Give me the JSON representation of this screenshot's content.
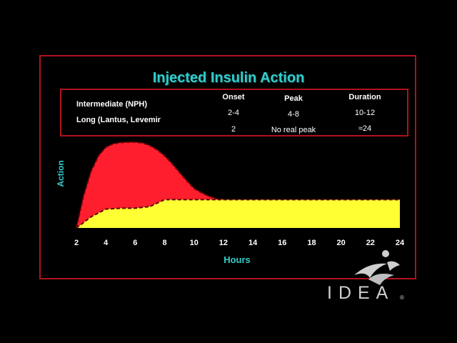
{
  "slide": {
    "title": "Injected Insulin Action"
  },
  "table": {
    "headers": {
      "onset": "Onset",
      "peak": "Peak",
      "duration": "Duration"
    },
    "rows": [
      {
        "name": "Intermediate (NPH)",
        "onset": "2-4",
        "peak": "4-8",
        "duration": "10-12"
      },
      {
        "name": "Long (Lantus, Levemir",
        "onset": "2",
        "peak": "No real peak",
        "duration": "≈24"
      }
    ]
  },
  "logo": {
    "text": "IDEA",
    "mark": "®"
  },
  "colors": {
    "frame": "#b0121b",
    "title": "#33cccc",
    "nph_fill": "#ff1e2d",
    "long_fill": "#ffff33",
    "axis_label": "#33cccc"
  },
  "chart_data": {
    "type": "area",
    "xlabel": "Hours",
    "ylabel": "Action",
    "xlim": [
      2,
      24
    ],
    "ylim": [
      0,
      1
    ],
    "x_ticks": [
      "2",
      "4",
      "6",
      "8",
      "10",
      "12",
      "14",
      "16",
      "18",
      "20",
      "22",
      "24"
    ],
    "grid": false,
    "series": [
      {
        "name": "Intermediate (NPH)",
        "color": "#ff1e2d",
        "x": [
          2,
          2.5,
          3,
          3.5,
          4,
          4.5,
          5,
          5.5,
          6,
          6.5,
          7,
          7.5,
          8,
          8.5,
          9,
          9.5,
          10,
          10.5,
          11,
          11.5,
          12
        ],
        "y": [
          0.0,
          0.38,
          0.66,
          0.84,
          0.94,
          0.98,
          0.995,
          1.0,
          1.0,
          0.99,
          0.96,
          0.91,
          0.84,
          0.75,
          0.65,
          0.55,
          0.46,
          0.41,
          0.37,
          0.34,
          0.33
        ]
      },
      {
        "name": "Long (Lantus, Levemir",
        "color": "#ffff33",
        "x": [
          2,
          3,
          4,
          5,
          6,
          7,
          8,
          9,
          10,
          12,
          24
        ],
        "y": [
          0.0,
          0.13,
          0.22,
          0.23,
          0.23,
          0.25,
          0.33,
          0.33,
          0.33,
          0.33,
          0.33
        ]
      }
    ]
  }
}
